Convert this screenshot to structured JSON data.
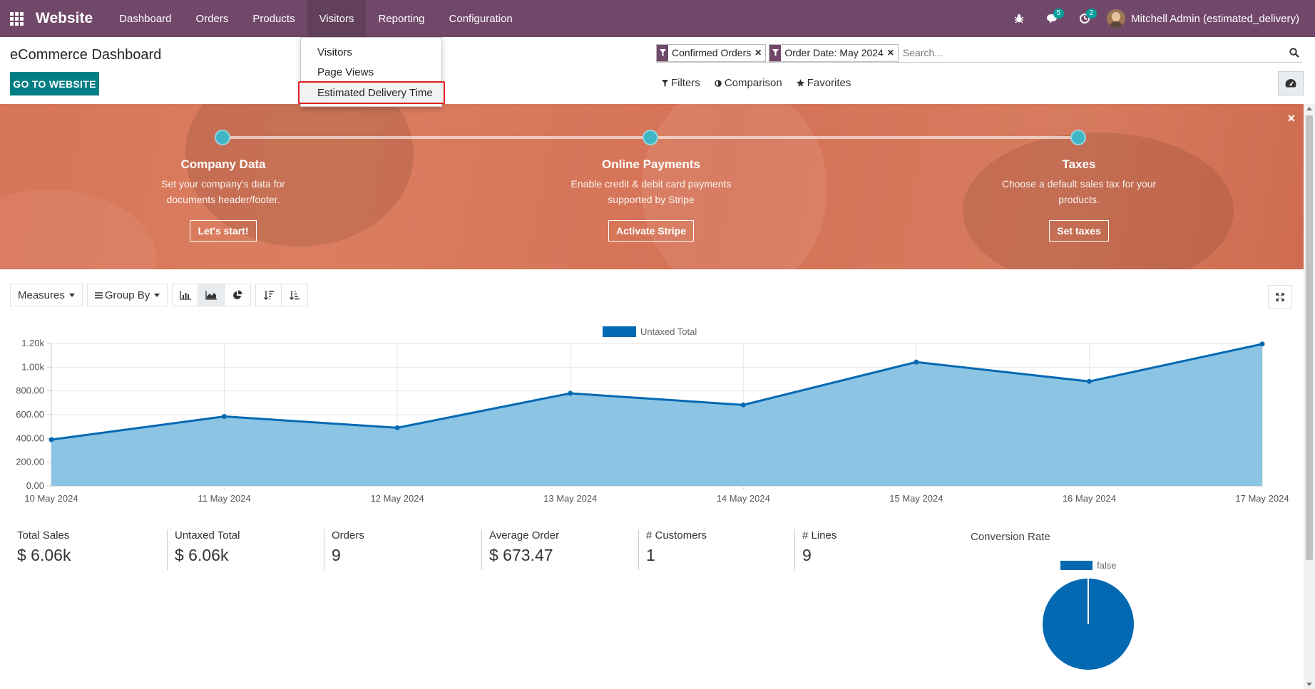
{
  "navbar": {
    "app_name": "Website",
    "menu": [
      "Dashboard",
      "Orders",
      "Products",
      "Visitors",
      "Reporting",
      "Configuration"
    ],
    "active_menu": "Visitors",
    "messages_badge": "5",
    "activities_badge": "2",
    "user": "Mitchell Admin (estimated_delivery)"
  },
  "visitors_menu": {
    "items": [
      "Visitors",
      "Page Views",
      "Estimated Delivery Time"
    ],
    "highlighted": "Estimated Delivery Time"
  },
  "control_panel": {
    "title": "eCommerce Dashboard",
    "go_to_website": "GO TO WEBSITE",
    "facets": [
      "Confirmed Orders",
      "Order Date: May 2024"
    ],
    "search_placeholder": "Search...",
    "filters_label": "Filters",
    "comparison_label": "Comparison",
    "favorites_label": "Favorites"
  },
  "onboarding": {
    "steps": [
      {
        "title": "Company Data",
        "desc_1": "Set your company's data for",
        "desc_2": "documents header/footer.",
        "button": "Let's start!"
      },
      {
        "title": "Online Payments",
        "desc_1": "Enable credit & debit card payments",
        "desc_2": "supported by Stripe",
        "button": "Activate Stripe"
      },
      {
        "title": "Taxes",
        "desc_1": "Choose a default sales tax for your",
        "desc_2": "products.",
        "button": "Set taxes"
      }
    ],
    "close_symbol": "×"
  },
  "graph_toolbar": {
    "measures": "Measures",
    "group_by": "Group By"
  },
  "chart_data": {
    "type": "area",
    "series": [
      {
        "name": "Untaxed Total",
        "values": [
          390,
          585,
          490,
          780,
          682,
          1043,
          880,
          1195
        ]
      }
    ],
    "categories": [
      "10 May 2024",
      "11 May 2024",
      "12 May 2024",
      "13 May 2024",
      "14 May 2024",
      "15 May 2024",
      "16 May 2024",
      "17 May 2024"
    ],
    "y_ticks": [
      "0.00",
      "200.00",
      "400.00",
      "600.00",
      "800.00",
      "1.00k",
      "1.20k"
    ],
    "ylim": [
      0,
      1200
    ],
    "grid": true,
    "legend": "top-center",
    "colors": {
      "line": "#0469b3",
      "fill": "#8cc4e3"
    }
  },
  "kpis": [
    {
      "label": "Total Sales",
      "value": "$ 6.06k"
    },
    {
      "label": "Untaxed Total",
      "value": "$ 6.06k"
    },
    {
      "label": "Orders",
      "value": "9"
    },
    {
      "label": "Average Order",
      "value": "$ 673.47"
    },
    {
      "label": "# Customers",
      "value": "1"
    },
    {
      "label": "# Lines",
      "value": "9"
    }
  ],
  "conversion": {
    "label": "Conversion Rate",
    "pie_legend": "false",
    "pie_values": [
      100
    ]
  },
  "colors": {
    "navbar": "#71486a",
    "primary": "#017e84",
    "series": "#0469b3",
    "step_dot": "#3fb5c6"
  }
}
